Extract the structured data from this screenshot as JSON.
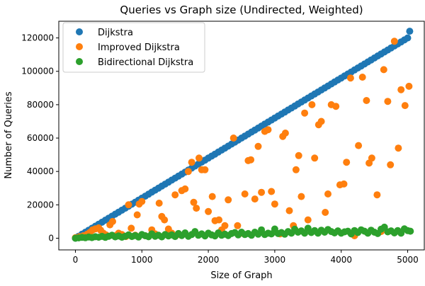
{
  "chart_data": {
    "type": "scatter",
    "title": "Queries vs Graph size (Undirected, Weighted)",
    "xlabel": "Size of Graph",
    "ylabel": "Number of Queries",
    "xlim": [
      -250,
      5250
    ],
    "ylim": [
      -7000,
      130000
    ],
    "xticks": [
      0,
      1000,
      2000,
      3000,
      4000,
      5000
    ],
    "yticks": [
      0,
      20000,
      40000,
      60000,
      80000,
      100000,
      120000
    ],
    "legend_position": "top-left",
    "grid": false,
    "series": [
      {
        "name": "Dijkstra",
        "color": "#1f77b4",
        "points": [
          [
            0,
            0
          ],
          [
            50,
            1200
          ],
          [
            100,
            2400
          ],
          [
            150,
            3600
          ],
          [
            200,
            4800
          ],
          [
            250,
            6000
          ],
          [
            300,
            7200
          ],
          [
            350,
            8400
          ],
          [
            400,
            9600
          ],
          [
            450,
            10800
          ],
          [
            500,
            12000
          ],
          [
            550,
            13200
          ],
          [
            600,
            14400
          ],
          [
            650,
            15600
          ],
          [
            700,
            16800
          ],
          [
            750,
            18000
          ],
          [
            800,
            19200
          ],
          [
            850,
            20400
          ],
          [
            900,
            21600
          ],
          [
            950,
            22800
          ],
          [
            1000,
            24000
          ],
          [
            1050,
            25200
          ],
          [
            1100,
            26400
          ],
          [
            1150,
            27600
          ],
          [
            1200,
            28800
          ],
          [
            1250,
            30000
          ],
          [
            1300,
            31200
          ],
          [
            1350,
            32400
          ],
          [
            1400,
            33600
          ],
          [
            1450,
            34800
          ],
          [
            1500,
            36000
          ],
          [
            1550,
            37200
          ],
          [
            1600,
            38400
          ],
          [
            1650,
            39600
          ],
          [
            1700,
            40800
          ],
          [
            1750,
            42000
          ],
          [
            1800,
            43200
          ],
          [
            1850,
            44400
          ],
          [
            1900,
            45600
          ],
          [
            1950,
            46800
          ],
          [
            2000,
            48000
          ],
          [
            2050,
            49200
          ],
          [
            2100,
            50400
          ],
          [
            2150,
            51600
          ],
          [
            2200,
            52800
          ],
          [
            2250,
            54000
          ],
          [
            2300,
            55200
          ],
          [
            2350,
            56400
          ],
          [
            2400,
            57600
          ],
          [
            2450,
            58800
          ],
          [
            2500,
            60000
          ],
          [
            2550,
            61200
          ],
          [
            2600,
            62400
          ],
          [
            2650,
            63600
          ],
          [
            2700,
            64800
          ],
          [
            2750,
            66000
          ],
          [
            2800,
            67200
          ],
          [
            2850,
            68400
          ],
          [
            2900,
            69600
          ],
          [
            2950,
            70800
          ],
          [
            3000,
            72000
          ],
          [
            3050,
            73200
          ],
          [
            3100,
            74400
          ],
          [
            3150,
            75600
          ],
          [
            3200,
            76800
          ],
          [
            3250,
            78000
          ],
          [
            3300,
            79200
          ],
          [
            3350,
            80400
          ],
          [
            3400,
            81600
          ],
          [
            3450,
            82800
          ],
          [
            3500,
            84000
          ],
          [
            3550,
            85200
          ],
          [
            3600,
            86400
          ],
          [
            3650,
            87600
          ],
          [
            3700,
            88800
          ],
          [
            3750,
            90000
          ],
          [
            3800,
            91200
          ],
          [
            3850,
            92400
          ],
          [
            3900,
            93600
          ],
          [
            3950,
            94800
          ],
          [
            4000,
            96000
          ],
          [
            4050,
            97200
          ],
          [
            4100,
            98400
          ],
          [
            4150,
            99600
          ],
          [
            4200,
            100800
          ],
          [
            4250,
            102000
          ],
          [
            4300,
            103200
          ],
          [
            4350,
            104400
          ],
          [
            4400,
            105600
          ],
          [
            4450,
            106800
          ],
          [
            4500,
            108000
          ],
          [
            4550,
            109200
          ],
          [
            4600,
            110400
          ],
          [
            4650,
            111600
          ],
          [
            4700,
            112800
          ],
          [
            4750,
            114000
          ],
          [
            4800,
            115200
          ],
          [
            4850,
            116400
          ],
          [
            4900,
            117600
          ],
          [
            4950,
            118800
          ],
          [
            5000,
            120000
          ],
          [
            5030,
            124000
          ]
        ]
      },
      {
        "name": "Improved Dijkstra",
        "color": "#ff7f0e",
        "points": [
          [
            0,
            300
          ],
          [
            60,
            900
          ],
          [
            120,
            1500
          ],
          [
            180,
            2500
          ],
          [
            220,
            3500
          ],
          [
            260,
            5000
          ],
          [
            300,
            5600
          ],
          [
            350,
            6200
          ],
          [
            380,
            4800
          ],
          [
            420,
            3000
          ],
          [
            460,
            2000
          ],
          [
            520,
            8000
          ],
          [
            560,
            10000
          ],
          [
            600,
            1500
          ],
          [
            650,
            3000
          ],
          [
            700,
            2200
          ],
          [
            760,
            1000
          ],
          [
            800,
            20000
          ],
          [
            840,
            6000
          ],
          [
            900,
            1800
          ],
          [
            930,
            14000
          ],
          [
            960,
            20500
          ],
          [
            1000,
            22000
          ],
          [
            1050,
            1500
          ],
          [
            1100,
            1000
          ],
          [
            1150,
            5000
          ],
          [
            1200,
            2600
          ],
          [
            1260,
            21000
          ],
          [
            1300,
            13000
          ],
          [
            1340,
            11000
          ],
          [
            1400,
            5500
          ],
          [
            1450,
            3000
          ],
          [
            1500,
            26000
          ],
          [
            1550,
            2200
          ],
          [
            1600,
            28500
          ],
          [
            1650,
            29500
          ],
          [
            1700,
            40000
          ],
          [
            1750,
            45500
          ],
          [
            1780,
            21500
          ],
          [
            1820,
            18000
          ],
          [
            1860,
            48000
          ],
          [
            1900,
            41000
          ],
          [
            1950,
            41000
          ],
          [
            2000,
            16000
          ],
          [
            2060,
            25000
          ],
          [
            2100,
            10500
          ],
          [
            2160,
            11000
          ],
          [
            2200,
            5000
          ],
          [
            2250,
            7500
          ],
          [
            2300,
            23000
          ],
          [
            2380,
            60000
          ],
          [
            2440,
            7500
          ],
          [
            2500,
            3000
          ],
          [
            2550,
            26500
          ],
          [
            2600,
            46500
          ],
          [
            2640,
            47000
          ],
          [
            2700,
            23500
          ],
          [
            2750,
            55000
          ],
          [
            2800,
            27500
          ],
          [
            2850,
            64000
          ],
          [
            2900,
            65000
          ],
          [
            2950,
            28000
          ],
          [
            3000,
            20500
          ],
          [
            3080,
            2600
          ],
          [
            3120,
            61000
          ],
          [
            3160,
            63000
          ],
          [
            3220,
            16500
          ],
          [
            3280,
            7500
          ],
          [
            3320,
            41000
          ],
          [
            3360,
            49500
          ],
          [
            3400,
            25000
          ],
          [
            3450,
            75000
          ],
          [
            3500,
            11000
          ],
          [
            3560,
            80000
          ],
          [
            3600,
            48000
          ],
          [
            3660,
            68000
          ],
          [
            3700,
            70000
          ],
          [
            3760,
            15500
          ],
          [
            3800,
            26500
          ],
          [
            3850,
            80000
          ],
          [
            3920,
            79000
          ],
          [
            3980,
            32000
          ],
          [
            4040,
            32500
          ],
          [
            4080,
            45500
          ],
          [
            4140,
            96000
          ],
          [
            4200,
            1500
          ],
          [
            4260,
            55500
          ],
          [
            4320,
            96500
          ],
          [
            4380,
            82500
          ],
          [
            4420,
            45000
          ],
          [
            4460,
            48000
          ],
          [
            4540,
            26000
          ],
          [
            4600,
            4000
          ],
          [
            4640,
            101000
          ],
          [
            4700,
            82000
          ],
          [
            4740,
            44000
          ],
          [
            4800,
            118000
          ],
          [
            4860,
            54000
          ],
          [
            4900,
            89000
          ],
          [
            4960,
            79500
          ],
          [
            5020,
            91000
          ]
        ]
      },
      {
        "name": "Bidirectional Dijkstra",
        "color": "#2ca02c",
        "points": [
          [
            0,
            0
          ],
          [
            50,
            200
          ],
          [
            100,
            500
          ],
          [
            150,
            300
          ],
          [
            200,
            700
          ],
          [
            250,
            400
          ],
          [
            300,
            900
          ],
          [
            350,
            600
          ],
          [
            400,
            1100
          ],
          [
            450,
            500
          ],
          [
            500,
            1200
          ],
          [
            550,
            1800
          ],
          [
            600,
            800
          ],
          [
            650,
            1400
          ],
          [
            700,
            600
          ],
          [
            750,
            1200
          ],
          [
            800,
            2000
          ],
          [
            850,
            1000
          ],
          [
            900,
            1600
          ],
          [
            950,
            700
          ],
          [
            1000,
            2200
          ],
          [
            1050,
            1500
          ],
          [
            1100,
            900
          ],
          [
            1150,
            2600
          ],
          [
            1200,
            1200
          ],
          [
            1250,
            1800
          ],
          [
            1300,
            800
          ],
          [
            1350,
            2200
          ],
          [
            1400,
            1400
          ],
          [
            1450,
            2000
          ],
          [
            1500,
            1000
          ],
          [
            1550,
            2800
          ],
          [
            1600,
            1600
          ],
          [
            1650,
            3200
          ],
          [
            1700,
            1200
          ],
          [
            1750,
            2200
          ],
          [
            1800,
            4000
          ],
          [
            1850,
            1800
          ],
          [
            1900,
            2600
          ],
          [
            1950,
            1400
          ],
          [
            2000,
            3000
          ],
          [
            2050,
            2000
          ],
          [
            2100,
            1400
          ],
          [
            2150,
            3200
          ],
          [
            2200,
            1800
          ],
          [
            2250,
            2400
          ],
          [
            2300,
            1600
          ],
          [
            2350,
            2800
          ],
          [
            2400,
            3400
          ],
          [
            2450,
            2000
          ],
          [
            2500,
            3600
          ],
          [
            2550,
            2200
          ],
          [
            2600,
            2800
          ],
          [
            2650,
            1800
          ],
          [
            2700,
            3600
          ],
          [
            2750,
            2400
          ],
          [
            2800,
            5000
          ],
          [
            2850,
            2200
          ],
          [
            2900,
            3000
          ],
          [
            2950,
            2600
          ],
          [
            3000,
            5500
          ],
          [
            3050,
            2800
          ],
          [
            3100,
            3400
          ],
          [
            3150,
            2400
          ],
          [
            3200,
            4000
          ],
          [
            3250,
            3000
          ],
          [
            3300,
            5400
          ],
          [
            3350,
            3600
          ],
          [
            3400,
            4400
          ],
          [
            3450,
            3000
          ],
          [
            3500,
            6000
          ],
          [
            3550,
            3400
          ],
          [
            3600,
            4600
          ],
          [
            3650,
            3000
          ],
          [
            3700,
            4800
          ],
          [
            3750,
            3600
          ],
          [
            3800,
            5200
          ],
          [
            3850,
            4000
          ],
          [
            3900,
            3200
          ],
          [
            3950,
            4400
          ],
          [
            4000,
            3000
          ],
          [
            4050,
            3800
          ],
          [
            4100,
            4200
          ],
          [
            4150,
            2600
          ],
          [
            4200,
            4600
          ],
          [
            4250,
            3400
          ],
          [
            4300,
            5000
          ],
          [
            4350,
            4200
          ],
          [
            4400,
            3000
          ],
          [
            4450,
            4800
          ],
          [
            4500,
            3600
          ],
          [
            4550,
            2800
          ],
          [
            4600,
            5400
          ],
          [
            4650,
            6600
          ],
          [
            4700,
            3800
          ],
          [
            4750,
            4400
          ],
          [
            4800,
            3200
          ],
          [
            4850,
            4600
          ],
          [
            4900,
            3000
          ],
          [
            4950,
            5600
          ],
          [
            5000,
            4600
          ],
          [
            5040,
            4200
          ]
        ]
      }
    ]
  }
}
